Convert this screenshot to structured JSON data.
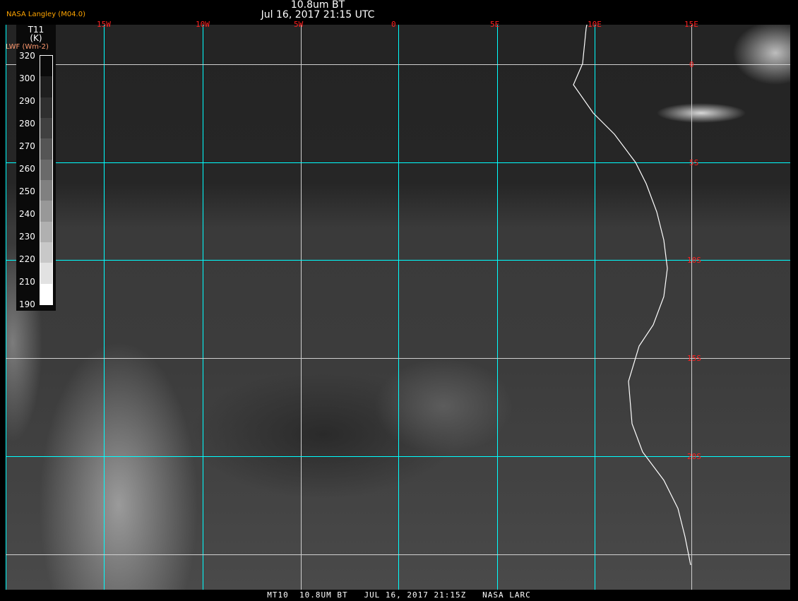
{
  "header": {
    "product": "10.8um BT",
    "datetime": "Jul 16, 2017 21:15 UTC",
    "credit": "NASA Langley (M04.0)"
  },
  "colorbar": {
    "variable": "T11",
    "unit": "(K)",
    "alt_label": "LWF (Wm-2)",
    "ticks": [
      "320",
      "300",
      "290",
      "280",
      "270",
      "260",
      "250",
      "240",
      "230",
      "220",
      "210",
      "190"
    ],
    "band_colors": [
      "#0a0a0a",
      "#1e1e1e",
      "#2f2f2f",
      "#404040",
      "#555555",
      "#6a6a6a",
      "#808080",
      "#989898",
      "#b0b0b0",
      "#c8c8c8",
      "#e2e2e2",
      "#ffffff"
    ]
  },
  "grid": {
    "longitudes": [
      "15W",
      "10W",
      "5W",
      "0",
      "5E",
      "10E",
      "15E"
    ],
    "latitudes": [
      "0",
      "5S",
      "10S",
      "15S",
      "20S"
    ],
    "gridline_color": "#00ffff",
    "label_color": "#ff2020",
    "coastline_color": "#ffffff"
  },
  "footer": {
    "caption": "MT10  10.8UM BT   JUL 16, 2017 21:15Z   NASA LARC"
  }
}
